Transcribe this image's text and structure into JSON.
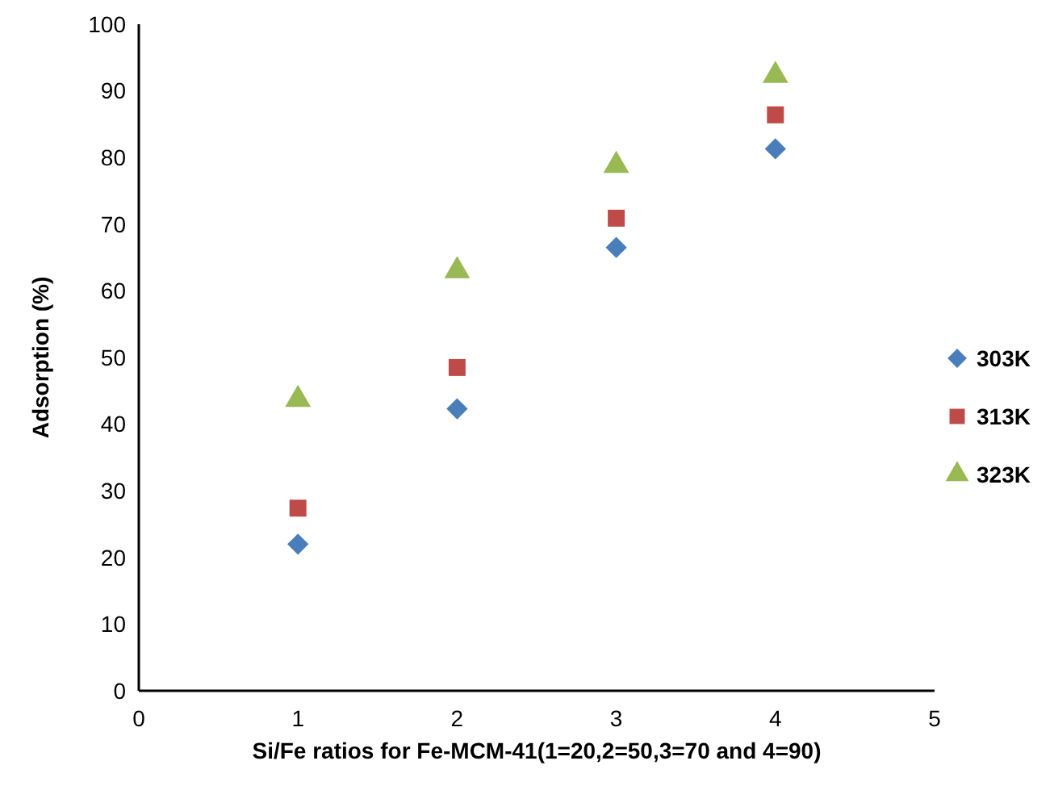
{
  "chart_data": {
    "type": "scatter",
    "xlabel": "Si/Fe ratios for Fe-MCM-41(1=20,2=50,3=70 and 4=90)",
    "ylabel": "Adsorption (%)",
    "x": [
      1,
      2,
      3,
      4
    ],
    "series": [
      {
        "name": "303K",
        "color": "#4a7ebb",
        "marker": "diamond",
        "values": [
          22,
          42.3,
          66.5,
          81.3
        ]
      },
      {
        "name": "313K",
        "color": "#be4b48",
        "marker": "square",
        "values": [
          27.4,
          48.5,
          70.9,
          86.4
        ]
      },
      {
        "name": "323K",
        "color": "#98b954",
        "marker": "triangle",
        "values": [
          43.7,
          63,
          78.8,
          92.3
        ]
      }
    ],
    "xlim": [
      0,
      5
    ],
    "xticks": [
      0,
      1,
      2,
      3,
      4,
      5
    ],
    "ylim": [
      0,
      100
    ],
    "yticks": [
      0,
      10,
      20,
      30,
      40,
      50,
      60,
      70,
      80,
      90,
      100
    ],
    "grid": false,
    "legend": "right"
  }
}
